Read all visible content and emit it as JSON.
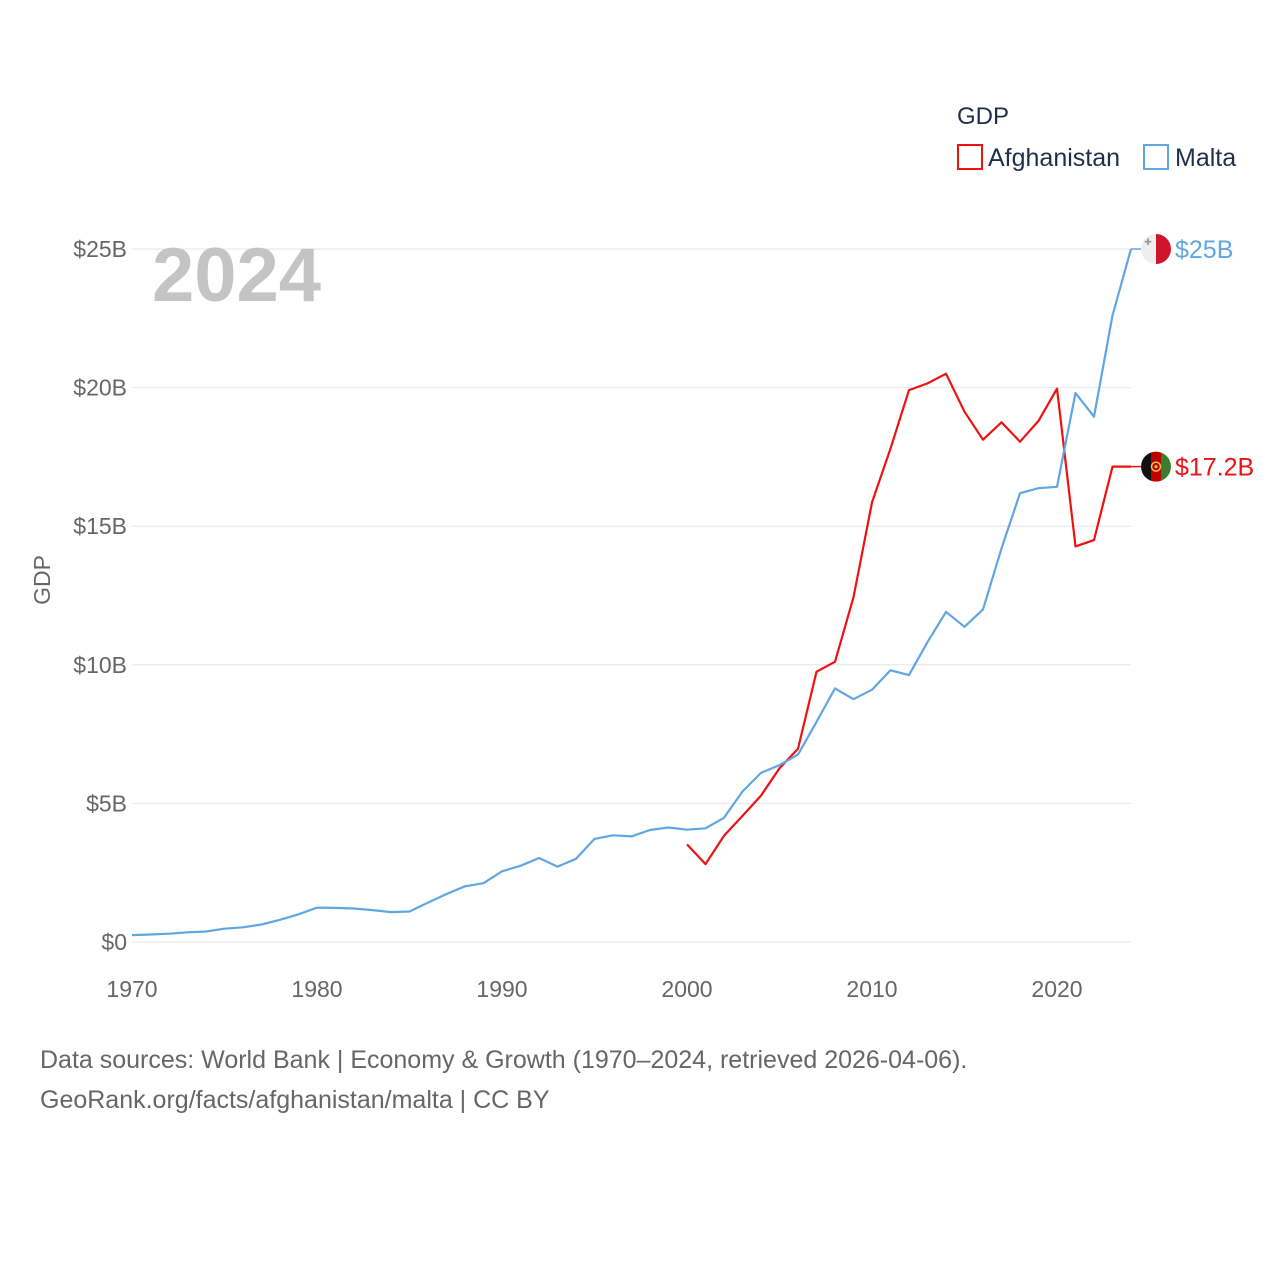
{
  "chart_data": {
    "type": "line",
    "title": "GDP",
    "year_label": "2024",
    "ylabel": "GDP",
    "xlabel": "",
    "xlim": [
      1970,
      2024
    ],
    "ylim": [
      0,
      25000000000
    ],
    "x_ticks": [
      1970,
      1980,
      1990,
      2000,
      2010,
      2020
    ],
    "x_tick_labels": [
      "1970",
      "1980",
      "1990",
      "2000",
      "2010",
      "2020"
    ],
    "y_ticks": [
      0,
      5000000000,
      10000000000,
      15000000000,
      20000000000,
      25000000000
    ],
    "y_tick_labels": [
      "$0",
      "$5B",
      "$10B",
      "$15B",
      "$20B",
      "$25B"
    ],
    "legend": {
      "title": "GDP",
      "position": "top-right"
    },
    "series": [
      {
        "name": "Afghanistan",
        "color": "#ee1111",
        "end_label": "$17.2B",
        "flag_icon": "afghanistan-flag-icon",
        "x": [
          2000,
          2001,
          2002,
          2003,
          2004,
          2005,
          2006,
          2007,
          2008,
          2009,
          2010,
          2011,
          2012,
          2013,
          2014,
          2015,
          2016,
          2017,
          2018,
          2019,
          2020,
          2021,
          2022,
          2023,
          2024
        ],
        "values": [
          3520000000.0,
          2810000000.0,
          3830000000.0,
          4550000000.0,
          5280000000.0,
          6270000000.0,
          6970000000.0,
          9750000000.0,
          10110000000.0,
          12440000000.0,
          15860000000.0,
          17800000000.0,
          19910000000.0,
          20150000000.0,
          20500000000.0,
          19130000000.0,
          18120000000.0,
          18750000000.0,
          18050000000.0,
          18800000000.0,
          19960000000.0,
          14270000000.0,
          14500000000.0,
          17150000000.0,
          17150000000.0
        ]
      },
      {
        "name": "Malta",
        "color": "#5fa6e3",
        "end_label": "$25B",
        "flag_icon": "malta-flag-icon",
        "x": [
          1970,
          1971,
          1972,
          1973,
          1974,
          1975,
          1976,
          1977,
          1978,
          1979,
          1980,
          1981,
          1982,
          1983,
          1984,
          1985,
          1986,
          1987,
          1988,
          1989,
          1990,
          1991,
          1992,
          1993,
          1994,
          1995,
          1996,
          1997,
          1998,
          1999,
          2000,
          2001,
          2002,
          2003,
          2004,
          2005,
          2006,
          2007,
          2008,
          2009,
          2010,
          2011,
          2012,
          2013,
          2014,
          2015,
          2016,
          2017,
          2018,
          2019,
          2020,
          2021,
          2022,
          2023,
          2024
        ],
        "values": [
          250000000.0,
          270000000.0,
          300000000.0,
          350000000.0,
          380000000.0,
          480000000.0,
          530000000.0,
          630000000.0,
          800000000.0,
          1000000000.0,
          1240000000.0,
          1230000000.0,
          1210000000.0,
          1150000000.0,
          1080000000.0,
          1100000000.0,
          1420000000.0,
          1730000000.0,
          2010000000.0,
          2120000000.0,
          2550000000.0,
          2750000000.0,
          3030000000.0,
          2720000000.0,
          3000000000.0,
          3720000000.0,
          3850000000.0,
          3810000000.0,
          4040000000.0,
          4130000000.0,
          4050000000.0,
          4100000000.0,
          4480000000.0,
          5430000000.0,
          6100000000.0,
          6380000000.0,
          6760000000.0,
          7940000000.0,
          9150000000.0,
          8760000000.0,
          9100000000.0,
          9800000000.0,
          9630000000.0,
          10820000000.0,
          11910000000.0,
          11370000000.0,
          12000000000.0,
          14200000000.0,
          16190000000.0,
          16370000000.0,
          16420000000.0,
          19800000000.0,
          18950000000.0,
          22600000000.0,
          25000000000.0
        ]
      }
    ]
  },
  "footer": {
    "line1": "Data sources: World Bank | Economy & Growth (1970–2024, retrieved 2026-04-06).",
    "line2": "GeoRank.org/facts/afghanistan/malta | CC BY"
  }
}
